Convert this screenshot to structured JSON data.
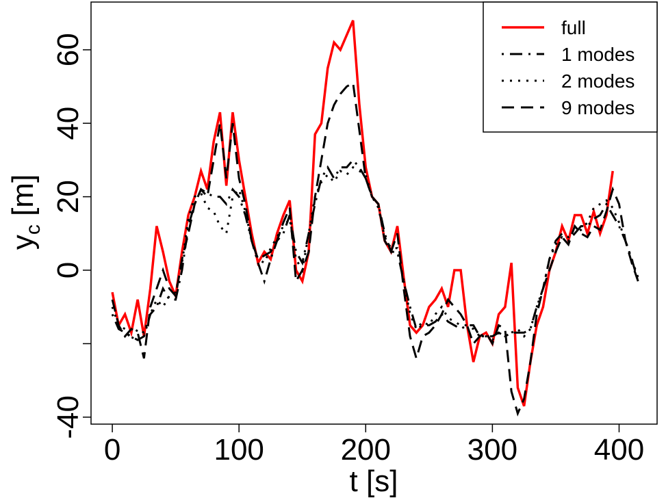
{
  "chart_data": {
    "type": "line",
    "xlabel": "t [s]",
    "ylabel": {
      "main": "y",
      "sub": "c",
      "unit": " [m]"
    },
    "xlim": [
      -16.8,
      430
    ],
    "ylim": [
      -41.9,
      73
    ],
    "xticks": [
      0,
      100,
      200,
      300,
      400
    ],
    "yticks": [
      -40,
      {
        "value": -20,
        "label": null
      },
      0,
      20,
      40,
      60
    ],
    "legend": "top-right",
    "x": [
      0,
      5,
      10,
      15,
      20,
      25,
      30,
      35,
      40,
      45,
      50,
      55,
      60,
      65,
      70,
      75,
      80,
      85,
      90,
      95,
      100,
      105,
      110,
      115,
      120,
      125,
      130,
      135,
      140,
      145,
      150,
      155,
      160,
      165,
      170,
      175,
      180,
      185,
      190,
      195,
      200,
      205,
      210,
      215,
      220,
      225,
      230,
      235,
      240,
      245,
      250,
      255,
      260,
      265,
      270,
      275,
      280,
      285,
      290,
      295,
      300,
      305,
      310,
      315,
      320,
      325,
      330,
      335,
      340,
      345,
      350,
      355,
      360,
      365,
      370,
      375,
      380,
      385,
      390,
      395,
      400,
      405,
      410,
      415
    ],
    "series": [
      {
        "name": "full",
        "color": "#ff0000",
        "linestyle": "solid",
        "values": [
          -6,
          -15,
          -12,
          -17,
          -8,
          -18,
          -5,
          12,
          5,
          -3,
          -7,
          5,
          15,
          20,
          27,
          22,
          35,
          43,
          23,
          43,
          30,
          20,
          10,
          2,
          5,
          3,
          10,
          15,
          19,
          0,
          -3,
          5,
          37,
          40,
          55,
          62,
          60,
          64,
          68,
          45,
          28,
          20,
          18,
          8,
          5,
          12,
          -2,
          -15,
          -17,
          -15,
          -10,
          -8,
          -5,
          -10,
          0,
          0,
          -15,
          -25,
          -18,
          -17,
          -20,
          -12,
          -10,
          2,
          -32,
          -37,
          -25,
          -15,
          -10,
          0,
          5,
          12,
          8,
          15,
          15,
          10,
          16,
          10,
          15,
          27,
          null,
          null,
          null,
          null
        ]
      },
      {
        "name": "1 modes",
        "color": "#000000",
        "linestyle": "dashdot",
        "values": [
          -12,
          -16,
          -17,
          -18,
          -19,
          -18,
          -12,
          -10,
          -5,
          -8,
          -8,
          0,
          12,
          18,
          22,
          21,
          20,
          20,
          18,
          22,
          20,
          15,
          8,
          2,
          -3,
          3,
          8,
          10,
          15,
          5,
          2,
          10,
          18,
          25,
          28,
          25,
          28,
          28,
          30,
          28,
          25,
          20,
          18,
          10,
          5,
          5,
          -3,
          -10,
          -16,
          -15,
          -15,
          -14,
          -12,
          -14,
          -15,
          -16,
          -15,
          -15,
          -18,
          -18,
          -18,
          -17,
          -18,
          -17,
          -17,
          -17,
          -16,
          -10,
          -5,
          3,
          8,
          10,
          9,
          10,
          12,
          12,
          14,
          15,
          18,
          15,
          12,
          8,
          3,
          -3
        ]
      },
      {
        "name": "2 modes",
        "color": "#000000",
        "linestyle": "dotted",
        "values": [
          -10,
          -15,
          -16,
          -19,
          -16,
          -17,
          -12,
          -8,
          -10,
          -7,
          -6,
          2,
          14,
          20,
          21,
          17,
          16,
          12,
          10,
          20,
          22,
          16,
          8,
          3,
          2,
          6,
          9,
          12,
          14,
          3,
          0,
          10,
          20,
          24,
          26,
          24,
          27,
          26,
          28,
          27,
          26,
          20,
          17,
          9,
          6,
          6,
          -3,
          -12,
          -16,
          -14,
          -15,
          -12,
          -10,
          -13,
          -14,
          -15,
          -15,
          -16,
          -18,
          -18,
          -19,
          -17,
          -18,
          -17,
          -16,
          -18,
          -16,
          -10,
          -5,
          3,
          7,
          9,
          8,
          10,
          11,
          13,
          17,
          18,
          19,
          17,
          13,
          8,
          3,
          -2
        ]
      },
      {
        "name": "9 modes",
        "color": "#000000",
        "linestyle": "dashed",
        "values": [
          -8,
          -15,
          -18,
          -16,
          -17,
          -24,
          -10,
          -5,
          0,
          -5,
          -7,
          3,
          10,
          18,
          22,
          20,
          30,
          40,
          25,
          40,
          25,
          18,
          8,
          3,
          4,
          5,
          8,
          13,
          17,
          -3,
          0,
          5,
          20,
          30,
          40,
          45,
          48,
          50,
          51,
          38,
          25,
          20,
          18,
          8,
          5,
          10,
          -5,
          -18,
          -24,
          -18,
          -17,
          -15,
          -12,
          -8,
          -10,
          -12,
          -15,
          -20,
          -18,
          -17,
          -20,
          -15,
          -16,
          -33,
          -39,
          -35,
          -25,
          -12,
          -5,
          0,
          5,
          9,
          7,
          12,
          10,
          9,
          12,
          11,
          16,
          22,
          18,
          8,
          2,
          -3
        ]
      }
    ]
  }
}
